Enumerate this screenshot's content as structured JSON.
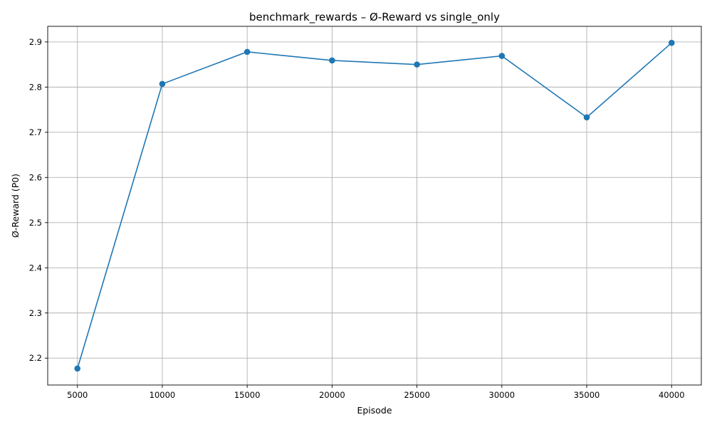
{
  "chart_data": {
    "type": "line",
    "title": "benchmark_rewards – Ø-Reward vs single_only",
    "xlabel": "Episode",
    "ylabel": "Ø-Reward (P0)",
    "x": [
      5000,
      10000,
      15000,
      20000,
      25000,
      30000,
      35000,
      40000
    ],
    "series": [
      {
        "values": [
          2.177,
          2.807,
          2.878,
          2.859,
          2.85,
          2.869,
          2.733,
          2.898
        ],
        "color": "#1f77b4",
        "marker": "circle"
      }
    ],
    "xlim": [
      3250,
      41750
    ],
    "ylim": [
      2.1405,
      2.9345
    ],
    "xticks": [
      5000,
      10000,
      15000,
      20000,
      25000,
      30000,
      35000,
      40000
    ],
    "yticks": [
      2.2,
      2.3,
      2.4,
      2.5,
      2.6,
      2.7,
      2.8,
      2.9
    ],
    "grid": true,
    "legend": false
  }
}
